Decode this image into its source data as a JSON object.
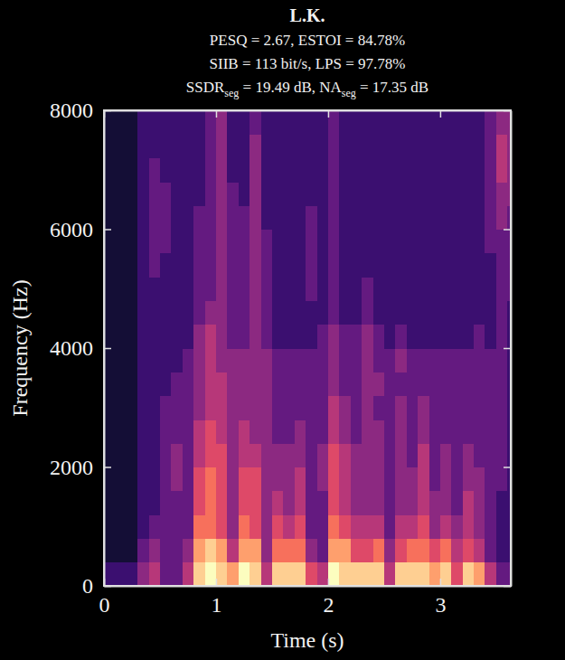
{
  "chart_data": {
    "type": "heatmap",
    "title": "L.K.",
    "subtitle": [
      "PESQ = 2.67, ESTOI = 84.78%",
      "SIIB = 113 bit/s, LPS = 97.78%",
      [
        "SSDR",
        "seg",
        " = 19.49 dB, NA",
        "seg",
        " = 17.35 dB"
      ]
    ],
    "x_label": "Time (s)",
    "y_label": "Frequency (Hz)",
    "xlim": [
      0,
      3.63
    ],
    "xticks": [
      0,
      1,
      2,
      3
    ],
    "ylim": [
      0,
      8000
    ],
    "yticks": [
      0,
      2000,
      4000,
      6000,
      8000
    ],
    "grid": false,
    "zlim": [
      0,
      10
    ],
    "x": [
      0.05,
      0.15,
      0.25,
      0.35,
      0.45,
      0.55,
      0.65,
      0.75,
      0.85,
      0.95,
      1.05,
      1.15,
      1.25,
      1.35,
      1.45,
      1.55,
      1.65,
      1.75,
      1.85,
      1.95,
      2.05,
      2.15,
      2.25,
      2.35,
      2.45,
      2.55,
      2.65,
      2.75,
      2.85,
      2.95,
      3.05,
      3.15,
      3.25,
      3.35,
      3.45,
      3.55,
      3.65
    ],
    "y": [
      200,
      600,
      1000,
      1400,
      1800,
      2200,
      2600,
      3000,
      3400,
      3800,
      4200,
      4600,
      5000,
      5400,
      5800,
      6200,
      6600,
      7000,
      7400,
      7800
    ],
    "z": [
      [
        2,
        2,
        2,
        4,
        5,
        3,
        3,
        5,
        9,
        10,
        9,
        8,
        10,
        9,
        5,
        9,
        9,
        9,
        6,
        5,
        10,
        9,
        9,
        9,
        9,
        5,
        9,
        9,
        9,
        8,
        9,
        6,
        9,
        8,
        5,
        3,
        3
      ],
      [
        1,
        1,
        1,
        3,
        4,
        3,
        3,
        4,
        8,
        9,
        8,
        5,
        8,
        8,
        4,
        7,
        7,
        7,
        4,
        3,
        8,
        8,
        6,
        6,
        7,
        4,
        6,
        7,
        7,
        6,
        7,
        5,
        6,
        5,
        3,
        2,
        2
      ],
      [
        1,
        1,
        1,
        2,
        3,
        3,
        3,
        3,
        7,
        7,
        6,
        4,
        7,
        6,
        4,
        6,
        5,
        6,
        3,
        3,
        7,
        6,
        5,
        5,
        5,
        3,
        5,
        5,
        6,
        4,
        5,
        4,
        5,
        4,
        3,
        2,
        2
      ],
      [
        1,
        1,
        1,
        2,
        2,
        3,
        3,
        3,
        6,
        7,
        6,
        4,
        6,
        6,
        4,
        5,
        4,
        5,
        3,
        3,
        6,
        5,
        4,
        4,
        4,
        3,
        4,
        4,
        5,
        4,
        4,
        3,
        5,
        4,
        3,
        2,
        2
      ],
      [
        1,
        1,
        1,
        2,
        2,
        3,
        4,
        3,
        6,
        7,
        6,
        4,
        6,
        6,
        4,
        4,
        4,
        5,
        3,
        4,
        6,
        5,
        4,
        4,
        4,
        3,
        4,
        4,
        5,
        3,
        4,
        3,
        4,
        4,
        3,
        3,
        2
      ],
      [
        1,
        1,
        1,
        2,
        2,
        3,
        4,
        3,
        5,
        6,
        6,
        4,
        5,
        5,
        4,
        4,
        4,
        4,
        3,
        4,
        6,
        5,
        4,
        4,
        4,
        3,
        4,
        3,
        5,
        3,
        4,
        3,
        4,
        3,
        3,
        3,
        2
      ],
      [
        1,
        1,
        1,
        2,
        2,
        3,
        3,
        3,
        5,
        6,
        5,
        4,
        5,
        4,
        4,
        3,
        3,
        4,
        3,
        3,
        5,
        4,
        3,
        4,
        4,
        3,
        4,
        3,
        4,
        3,
        3,
        3,
        3,
        3,
        3,
        3,
        2
      ],
      [
        1,
        1,
        1,
        2,
        2,
        3,
        3,
        3,
        4,
        5,
        5,
        4,
        4,
        4,
        4,
        3,
        3,
        3,
        3,
        3,
        5,
        4,
        3,
        4,
        3,
        3,
        4,
        3,
        4,
        3,
        3,
        3,
        3,
        3,
        3,
        3,
        2
      ],
      [
        1,
        1,
        1,
        2,
        2,
        2,
        3,
        3,
        4,
        5,
        5,
        4,
        4,
        4,
        4,
        3,
        3,
        3,
        3,
        3,
        4,
        3,
        3,
        4,
        4,
        3,
        3,
        3,
        3,
        3,
        3,
        3,
        3,
        3,
        3,
        3,
        2
      ],
      [
        1,
        1,
        1,
        2,
        2,
        2,
        2,
        3,
        4,
        5,
        4,
        4,
        4,
        4,
        4,
        3,
        3,
        3,
        3,
        3,
        4,
        3,
        3,
        4,
        3,
        3,
        4,
        3,
        3,
        3,
        3,
        3,
        3,
        3,
        3,
        3,
        2
      ],
      [
        1,
        1,
        1,
        2,
        2,
        2,
        2,
        2,
        4,
        5,
        4,
        3,
        3,
        4,
        3,
        2,
        2,
        2,
        2,
        3,
        4,
        3,
        3,
        4,
        3,
        2,
        3,
        2,
        2,
        2,
        2,
        2,
        2,
        3,
        2,
        3,
        2
      ],
      [
        1,
        1,
        1,
        2,
        2,
        2,
        2,
        2,
        3,
        4,
        4,
        3,
        3,
        4,
        3,
        2,
        2,
        2,
        2,
        2,
        3,
        2,
        2,
        3,
        2,
        2,
        2,
        2,
        2,
        2,
        2,
        2,
        2,
        2,
        2,
        3,
        2
      ],
      [
        1,
        1,
        1,
        2,
        2,
        2,
        2,
        2,
        3,
        3,
        4,
        3,
        3,
        4,
        3,
        2,
        2,
        2,
        3,
        2,
        3,
        2,
        2,
        3,
        2,
        2,
        2,
        2,
        2,
        2,
        2,
        2,
        2,
        2,
        2,
        3,
        3
      ],
      [
        1,
        1,
        1,
        2,
        3,
        2,
        2,
        2,
        3,
        3,
        4,
        3,
        3,
        4,
        3,
        2,
        2,
        2,
        3,
        2,
        3,
        2,
        2,
        2,
        2,
        2,
        2,
        2,
        2,
        2,
        2,
        2,
        2,
        2,
        2,
        3,
        3
      ],
      [
        1,
        1,
        1,
        2,
        3,
        3,
        2,
        2,
        3,
        3,
        4,
        3,
        3,
        4,
        3,
        2,
        2,
        2,
        3,
        2,
        3,
        2,
        2,
        2,
        2,
        2,
        2,
        2,
        2,
        2,
        2,
        2,
        2,
        2,
        3,
        3,
        3
      ],
      [
        1,
        1,
        1,
        2,
        3,
        3,
        2,
        2,
        3,
        3,
        4,
        3,
        3,
        4,
        2,
        2,
        2,
        2,
        3,
        2,
        3,
        2,
        2,
        2,
        2,
        2,
        2,
        2,
        2,
        2,
        2,
        2,
        2,
        2,
        3,
        4,
        3
      ],
      [
        1,
        1,
        1,
        2,
        3,
        3,
        2,
        2,
        2,
        3,
        4,
        3,
        2,
        4,
        2,
        2,
        2,
        2,
        2,
        2,
        3,
        2,
        2,
        2,
        2,
        2,
        2,
        2,
        2,
        2,
        2,
        2,
        2,
        2,
        3,
        4,
        4
      ],
      [
        1,
        1,
        1,
        2,
        3,
        2,
        2,
        2,
        2,
        3,
        4,
        2,
        2,
        4,
        2,
        2,
        2,
        2,
        2,
        2,
        3,
        2,
        2,
        2,
        2,
        2,
        2,
        2,
        2,
        2,
        2,
        2,
        2,
        2,
        3,
        5,
        4
      ],
      [
        1,
        1,
        1,
        2,
        2,
        2,
        2,
        2,
        2,
        3,
        4,
        2,
        2,
        4,
        2,
        2,
        2,
        2,
        2,
        2,
        3,
        2,
        2,
        2,
        2,
        2,
        2,
        2,
        2,
        2,
        2,
        2,
        2,
        2,
        3,
        5,
        4
      ],
      [
        1,
        1,
        1,
        2,
        2,
        2,
        2,
        2,
        2,
        3,
        4,
        2,
        2,
        3,
        2,
        2,
        2,
        2,
        2,
        2,
        3,
        2,
        2,
        2,
        2,
        2,
        2,
        2,
        2,
        2,
        2,
        2,
        2,
        2,
        3,
        4,
        4
      ]
    ]
  }
}
